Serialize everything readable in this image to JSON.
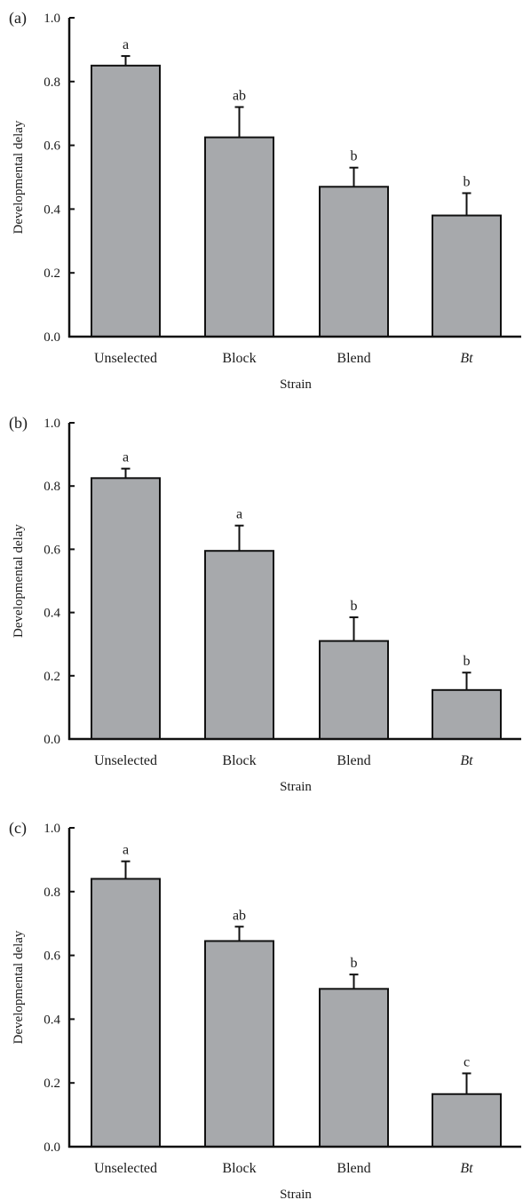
{
  "chart_data": [
    {
      "type": "bar",
      "panel_label": "(a)",
      "categories": [
        "Unselected",
        "Block",
        "Blend",
        "Bt"
      ],
      "italic_categories": [
        "Bt"
      ],
      "values": [
        0.85,
        0.625,
        0.47,
        0.38
      ],
      "errors": [
        0.03,
        0.095,
        0.06,
        0.07
      ],
      "significance": [
        "a",
        "ab",
        "b",
        "b"
      ],
      "xlabel": "Strain",
      "ylabel": "Developmental delay",
      "ylim": [
        0,
        1.0
      ],
      "yticks": [
        "0.0",
        "0.2",
        "0.4",
        "0.6",
        "0.8",
        "1.0"
      ],
      "bar_color": "#a7a9ac"
    },
    {
      "type": "bar",
      "panel_label": "(b)",
      "categories": [
        "Unselected",
        "Block",
        "Blend",
        "Bt"
      ],
      "italic_categories": [
        "Bt"
      ],
      "values": [
        0.825,
        0.595,
        0.31,
        0.155
      ],
      "errors": [
        0.03,
        0.08,
        0.075,
        0.055
      ],
      "significance": [
        "a",
        "a",
        "b",
        "b"
      ],
      "xlabel": "Strain",
      "ylabel": "Developmental delay",
      "ylim": [
        0,
        1.0
      ],
      "yticks": [
        "0.0",
        "0.2",
        "0.4",
        "0.6",
        "0.8",
        "1.0"
      ],
      "bar_color": "#a7a9ac"
    },
    {
      "type": "bar",
      "panel_label": "(c)",
      "categories": [
        "Unselected",
        "Block",
        "Blend",
        "Bt"
      ],
      "italic_categories": [
        "Bt"
      ],
      "values": [
        0.84,
        0.645,
        0.495,
        0.165
      ],
      "errors": [
        0.055,
        0.045,
        0.045,
        0.065
      ],
      "significance": [
        "a",
        "ab",
        "b",
        "c"
      ],
      "xlabel": "Strain",
      "ylabel": "Developmental delay",
      "ylim": [
        0,
        1.0
      ],
      "yticks": [
        "0.0",
        "0.2",
        "0.4",
        "0.6",
        "0.8",
        "1.0"
      ],
      "bar_color": "#a7a9ac"
    }
  ]
}
